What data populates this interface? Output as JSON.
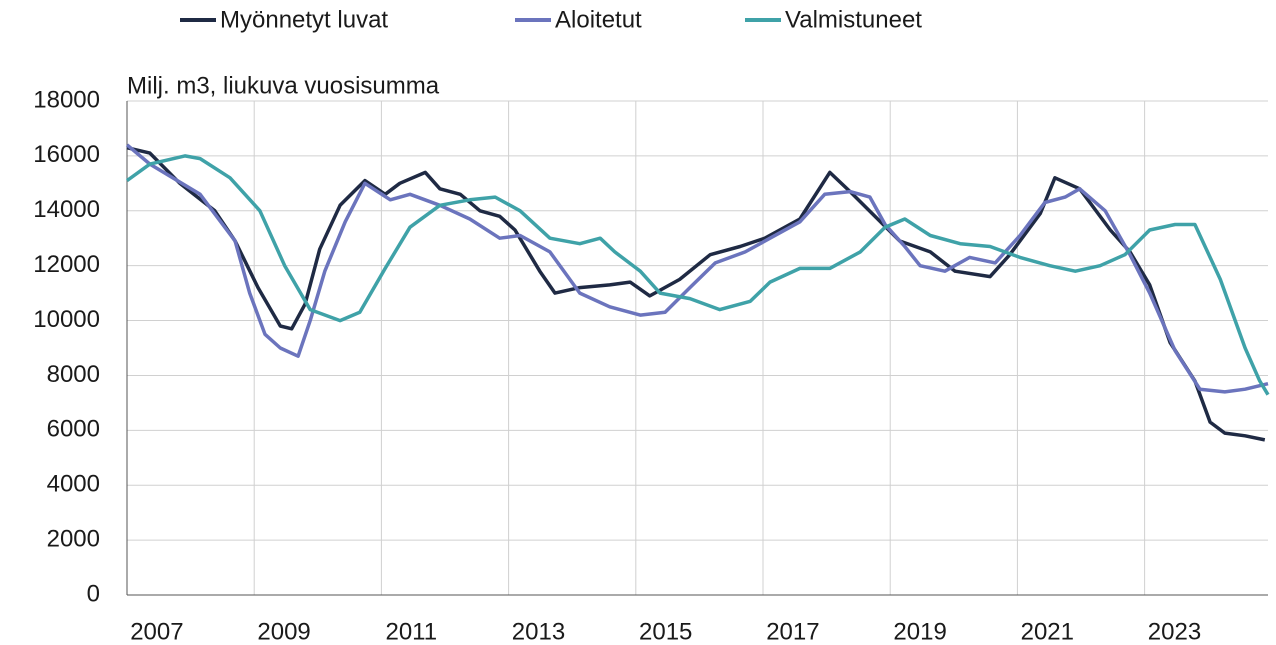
{
  "chart_data": {
    "type": "line",
    "y_axis_label": "Milj. m3, liukuva vuosisumma",
    "xlim": [
      2007,
      2024.94
    ],
    "xticks": [
      2007,
      2009,
      2011,
      2013,
      2015,
      2017,
      2019,
      2021,
      2023
    ],
    "ylim": [
      0,
      18000
    ],
    "yticks": [
      0,
      2000,
      4000,
      6000,
      8000,
      10000,
      12000,
      14000,
      16000,
      18000
    ],
    "grid": true,
    "legend": "top",
    "series": [
      {
        "name": "Myönnetyt luvat",
        "color": "#1f2a44",
        "x": [
          2007.0,
          2007.36,
          2007.83,
          2008.38,
          2008.7,
          2009.06,
          2009.41,
          2009.59,
          2009.8,
          2010.03,
          2010.35,
          2010.74,
          2011.06,
          2011.29,
          2011.69,
          2011.92,
          2012.24,
          2012.55,
          2012.86,
          2013.1,
          2013.49,
          2013.73,
          2014.12,
          2014.59,
          2014.91,
          2015.22,
          2015.69,
          2016.17,
          2016.64,
          2017.03,
          2017.58,
          2018.05,
          2018.37,
          2018.76,
          2019.15,
          2019.63,
          2020.02,
          2020.57,
          2020.88,
          2021.36,
          2021.59,
          2021.98,
          2022.46,
          2022.77,
          2023.08,
          2023.4,
          2023.79,
          2024.03,
          2024.26,
          2024.58,
          2024.89
        ],
        "values": [
          16300,
          16100,
          15000,
          14000,
          12900,
          11200,
          9800,
          9700,
          10600,
          12600,
          14200,
          15100,
          14600,
          15000,
          15400,
          14800,
          14600,
          14000,
          13800,
          13300,
          11800,
          11000,
          11200,
          11300,
          11400,
          10900,
          11500,
          12400,
          12700,
          13000,
          13700,
          15400,
          14700,
          13800,
          12900,
          12500,
          11800,
          11600,
          12400,
          13900,
          15200,
          14800,
          13300,
          12500,
          11300,
          9200,
          7800,
          6300,
          5900,
          5800,
          5650
        ]
      },
      {
        "name": "Aloitetut",
        "color": "#6b74bd",
        "x": [
          2007.0,
          2007.36,
          2008.15,
          2008.7,
          2008.93,
          2009.17,
          2009.41,
          2009.69,
          2009.88,
          2010.11,
          2010.43,
          2010.74,
          2011.14,
          2011.45,
          2011.92,
          2012.39,
          2012.86,
          2013.18,
          2013.65,
          2014.12,
          2014.59,
          2015.07,
          2015.46,
          2015.85,
          2016.25,
          2016.72,
          2017.11,
          2017.58,
          2017.97,
          2018.37,
          2018.68,
          2018.92,
          2019.23,
          2019.47,
          2019.86,
          2020.25,
          2020.65,
          2021.04,
          2021.43,
          2021.75,
          2021.98,
          2022.38,
          2022.77,
          2023.08,
          2023.48,
          2023.87,
          2024.26,
          2024.58,
          2024.94
        ],
        "values": [
          16400,
          15700,
          14600,
          12900,
          11000,
          9500,
          9000,
          8700,
          10000,
          11800,
          13600,
          15000,
          14400,
          14600,
          14200,
          13700,
          13000,
          13100,
          12500,
          11000,
          10500,
          10200,
          10300,
          11200,
          12100,
          12500,
          13000,
          13600,
          14600,
          14700,
          14500,
          13500,
          12700,
          12000,
          11800,
          12300,
          12100,
          13100,
          14300,
          14500,
          14800,
          14000,
          12400,
          11000,
          8900,
          7500,
          7400,
          7500,
          7700
        ]
      },
      {
        "name": "Valmistuneet",
        "color": "#3fa2a8",
        "x": [
          2007.0,
          2007.36,
          2007.91,
          2008.15,
          2008.62,
          2009.09,
          2009.48,
          2009.88,
          2010.35,
          2010.66,
          2011.06,
          2011.45,
          2011.92,
          2012.39,
          2012.79,
          2013.18,
          2013.65,
          2014.12,
          2014.44,
          2014.67,
          2015.07,
          2015.38,
          2015.85,
          2016.32,
          2016.8,
          2017.11,
          2017.58,
          2018.05,
          2018.53,
          2018.92,
          2019.23,
          2019.63,
          2020.1,
          2020.57,
          2021.04,
          2021.51,
          2021.91,
          2022.3,
          2022.69,
          2023.08,
          2023.48,
          2023.79,
          2024.19,
          2024.58,
          2024.81,
          2024.94
        ],
        "values": [
          15100,
          15700,
          16000,
          15900,
          15200,
          14000,
          12000,
          10400,
          10000,
          10300,
          11900,
          13400,
          14200,
          14400,
          14500,
          14000,
          13000,
          12800,
          13000,
          12500,
          11800,
          11000,
          10800,
          10400,
          10700,
          11400,
          11900,
          11900,
          12500,
          13400,
          13700,
          13100,
          12800,
          12700,
          12300,
          12000,
          11800,
          12000,
          12400,
          13300,
          13500,
          13500,
          11500,
          9000,
          7800,
          7300
        ]
      }
    ]
  }
}
